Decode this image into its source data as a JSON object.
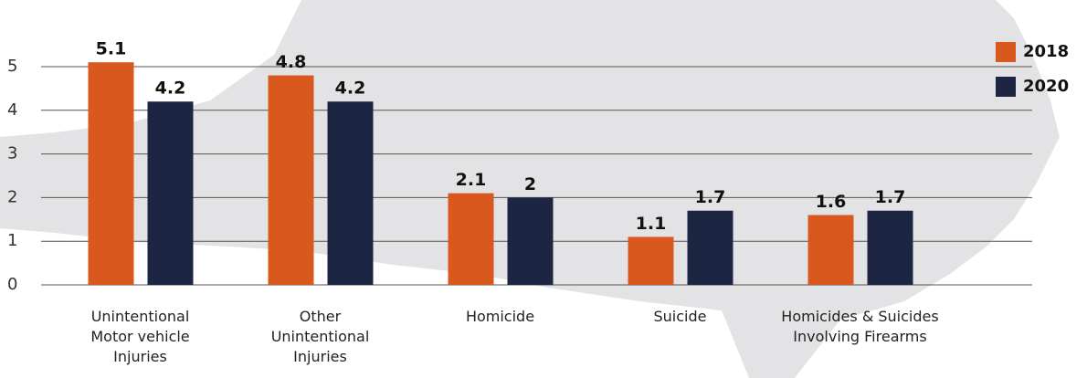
{
  "chart_data": {
    "type": "bar",
    "categories": [
      "Unintentional Motor vehicle Injuries",
      "Other Unintentional Injuries",
      "Homicide",
      "Suicide",
      "Homicides & Suicides Involving Firearms"
    ],
    "series": [
      {
        "name": "2018",
        "color": "#d9581e",
        "values": [
          5.1,
          4.8,
          2.1,
          1.1,
          1.6
        ]
      },
      {
        "name": "2020",
        "color": "#1c2541",
        "values": [
          4.2,
          4.2,
          2,
          1.7,
          1.7
        ]
      }
    ],
    "ylim": [
      0,
      5
    ],
    "yticks": [
      0,
      1,
      2,
      3,
      4,
      5
    ],
    "grid": true,
    "legend": "top-right"
  }
}
